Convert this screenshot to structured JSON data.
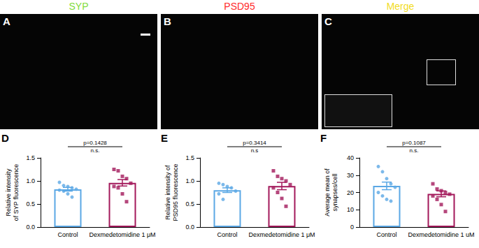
{
  "panels": [
    {
      "label": "A",
      "title": "SYP",
      "color": "#7fdc3a"
    },
    {
      "label": "B",
      "title": "PSD95",
      "color": "#ff2a2a"
    },
    {
      "label": "C",
      "title": "Merge",
      "color": "#f2dc1e"
    }
  ],
  "chart_data": [
    {
      "type": "bar",
      "annotations": {
        "panel": "D",
        "p_value": "p=0.1428",
        "significance": "n.s."
      },
      "categories": [
        "Control",
        "Dexmedetomidine 1 μM"
      ],
      "values": [
        0.82,
        0.96
      ],
      "errors": [
        0.04,
        0.07
      ],
      "points": [
        [
          0.97,
          0.9,
          0.88,
          0.85,
          0.82,
          0.8,
          0.78,
          0.72,
          0.65
        ],
        [
          1.25,
          1.22,
          1.1,
          1.05,
          0.95,
          0.88,
          0.85,
          0.72,
          0.55
        ]
      ],
      "colors": [
        "#5ba8e5",
        "#a3195b"
      ],
      "ylabel": "Relative intensity\nof SYP fluorescence",
      "ylim": [
        0,
        1.5
      ],
      "yticks": [
        {
          "value": 0,
          "label": "0.0"
        },
        {
          "value": 0.5,
          "label": "0.5"
        },
        {
          "value": 1,
          "label": "1.0"
        },
        {
          "value": 1.5,
          "label": "1.5"
        }
      ],
      "grid": false
    },
    {
      "type": "bar",
      "annotations": {
        "panel": "E",
        "p_value": "p=0.3414",
        "significance": "n.s"
      },
      "categories": [
        "Control",
        "Dexmedetomidine 1 μM"
      ],
      "values": [
        0.8,
        0.89
      ],
      "errors": [
        0.05,
        0.08
      ],
      "points": [
        [
          0.95,
          0.92,
          0.88,
          0.85,
          0.78,
          0.72,
          0.6
        ],
        [
          1.22,
          1.1,
          1.05,
          1.0,
          0.92,
          0.85,
          0.75,
          0.62,
          0.45
        ]
      ],
      "colors": [
        "#5ba8e5",
        "#a3195b"
      ],
      "ylabel": "Relative intensity of\nPSD95 fluorescence",
      "ylim": [
        0,
        1.5
      ],
      "yticks": [
        {
          "value": 0,
          "label": "0.0"
        },
        {
          "value": 0.5,
          "label": "0.5"
        },
        {
          "value": 1,
          "label": "1.0"
        },
        {
          "value": 1.5,
          "label": "1.5"
        }
      ],
      "grid": false
    },
    {
      "type": "bar",
      "annotations": {
        "panel": "F",
        "p_value": "p=0.1087",
        "significance": "n.s."
      },
      "categories": [
        "Control",
        "Dexmedetomidine 1 uM"
      ],
      "values": [
        23.8,
        19.2
      ],
      "errors": [
        2.2,
        1.7
      ],
      "points": [
        [
          35,
          32,
          28,
          25,
          23,
          20,
          18,
          16,
          15
        ],
        [
          25,
          22,
          21,
          20,
          19,
          18,
          16,
          13,
          9
        ]
      ],
      "colors": [
        "#5ba8e5",
        "#a3195b"
      ],
      "ylabel": "Average mean of\nsynapses/cell",
      "ylim": [
        0,
        40
      ],
      "yticks": [
        0,
        10,
        20,
        30,
        40
      ],
      "grid": false
    }
  ]
}
